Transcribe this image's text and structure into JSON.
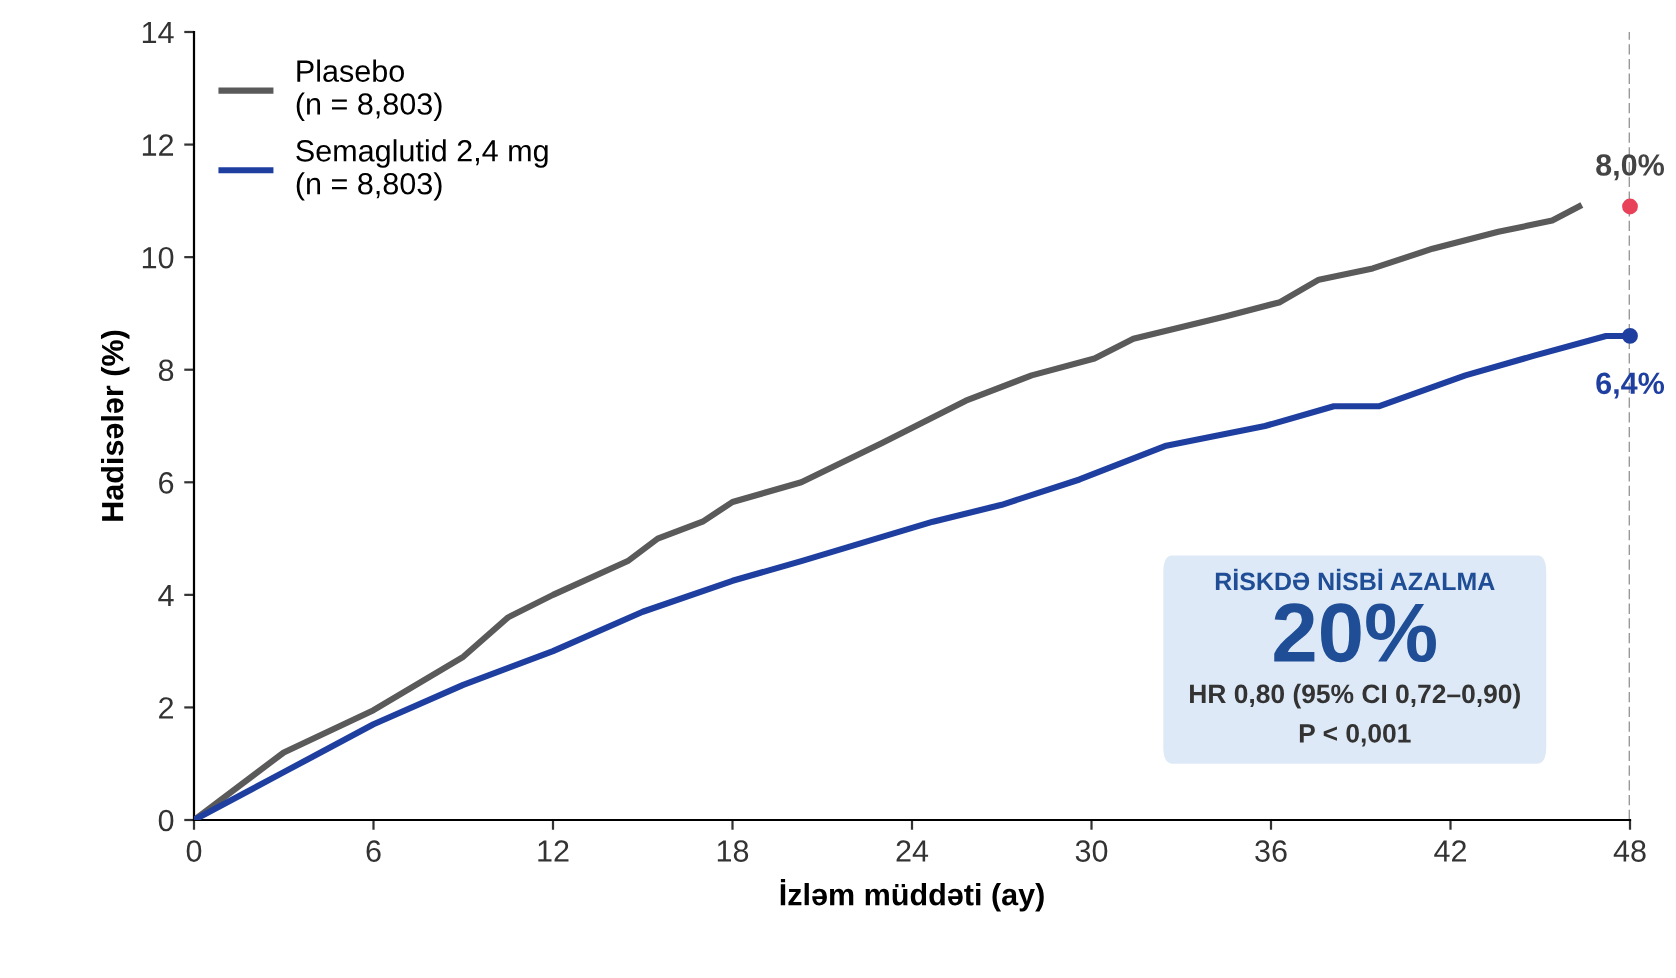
{
  "chart_data": {
    "type": "line",
    "xlabel": "İzləm müddəti (ay)",
    "ylabel": "Hadisələr (%)",
    "xlim": [
      0,
      48
    ],
    "xticks": [
      0,
      6,
      12,
      18,
      24,
      30,
      36,
      42,
      48
    ],
    "ylim": [
      0,
      14
    ],
    "yticks": [
      0,
      2,
      4,
      6,
      8,
      10,
      12,
      14
    ],
    "grid": false,
    "legend": "top left",
    "marker": "none",
    "line_style": "solid",
    "series": [
      {
        "name": "Plasebo\n(n = 8,803)",
        "color": "#5a5a5a",
        "x": [
          0,
          3,
          6,
          9,
          10.5,
          12,
          14.5,
          15.5,
          17,
          18,
          20.3,
          23,
          25.8,
          28,
          30.1,
          31.4,
          34.5,
          36.3,
          37.6,
          39.4,
          41.4,
          43.6,
          45.4,
          46.3
        ],
        "values": [
          0,
          1.2,
          1.95,
          2.9,
          3.6,
          4.0,
          4.6,
          5.0,
          5.3,
          5.65,
          6.0,
          6.7,
          7.45,
          7.9,
          8.2,
          8.55,
          8.95,
          9.2,
          9.6,
          9.8,
          10.15,
          10.45,
          10.65,
          10.9
        ]
      },
      {
        "name": "Semaglutid 2,4 mg\n(n = 8,803)",
        "color": "#1f3fa0",
        "x": [
          0,
          3,
          6,
          9,
          12,
          15,
          18,
          20.3,
          24.7,
          27,
          29.6,
          32.5,
          35.8,
          38.1,
          39.6,
          42.5,
          44.8,
          47.2,
          48
        ],
        "values": [
          0,
          0.85,
          1.7,
          2.4,
          3.0,
          3.7,
          4.25,
          4.6,
          5.3,
          5.6,
          6.05,
          6.65,
          7.0,
          7.35,
          7.35,
          7.9,
          8.25,
          8.6,
          8.6
        ]
      },
      {
        "type": "scatter",
        "marker": "circle",
        "color": "#e8425a",
        "x": [
          48
        ],
        "values": [
          10.9
        ]
      },
      {
        "type": "scatter",
        "marker": "circle",
        "color": "#1f3fa0",
        "x": [
          48
        ],
        "values": [
          8.6
        ]
      }
    ],
    "ref_lines": [
      {
        "axis": "x",
        "value": 48,
        "color": "#999999",
        "line_style": "dashed"
      }
    ],
    "annotations": [
      {
        "text": "8,0%",
        "x": 48,
        "y": 10.9
      },
      {
        "text": "6,4%",
        "x": 48,
        "y": 8.6
      },
      "RİSKDƏ NİSBİ AZALMA",
      "20%",
      "HR 0,80 (95% CI 0,72–0,90)",
      "P < 0,001"
    ]
  }
}
